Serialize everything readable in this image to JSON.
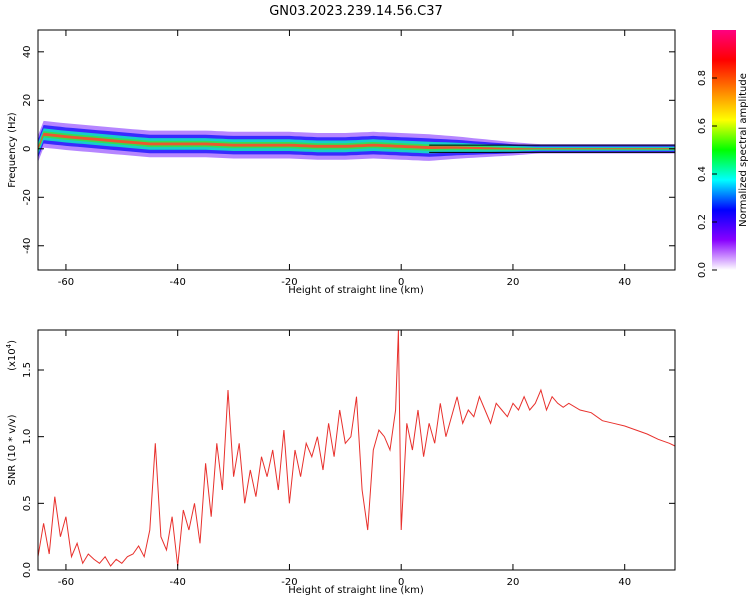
{
  "title": "GN03.2023.239.14.56.C37",
  "colors": {
    "trace": "#e8302c",
    "axis": "#000000"
  },
  "chart_data": [
    {
      "type": "heatmap",
      "xlabel": "Height of straight line (km)",
      "ylabel": "Frequency (Hz)",
      "xlim": [
        -65,
        49
      ],
      "ylim": [
        -50,
        49
      ],
      "x_ticks": [
        "-60",
        "-40",
        "-20",
        "0",
        "20",
        "40"
      ],
      "y_ticks": [
        "40",
        "20",
        "0",
        "-20",
        "-40"
      ],
      "colorbar": {
        "label": "Normalized spectral amplitude",
        "range": [
          0,
          1
        ],
        "ticks": [
          "0.0",
          "0.2",
          "0.4",
          "0.6",
          "0.8"
        ],
        "colors": [
          "#ffffff",
          "#8800ff",
          "#0000ff",
          "#00ffff",
          "#00ff00",
          "#ffff00",
          "#ff8000",
          "#ff0000",
          "#ff0080"
        ]
      },
      "band_center_hz": [
        [
          -64,
          6
        ],
        [
          -60,
          5
        ],
        [
          -55,
          4
        ],
        [
          -50,
          3
        ],
        [
          -45,
          2
        ],
        [
          -40,
          2
        ],
        [
          -35,
          2
        ],
        [
          -30,
          1.5
        ],
        [
          -25,
          1.5
        ],
        [
          -20,
          1.5
        ],
        [
          -15,
          1
        ],
        [
          -10,
          1
        ],
        [
          -5,
          1.5
        ],
        [
          0,
          1
        ],
        [
          5,
          0.5
        ],
        [
          10,
          0.5
        ],
        [
          20,
          0
        ],
        [
          30,
          0
        ],
        [
          40,
          0
        ],
        [
          49,
          0
        ]
      ]
    },
    {
      "type": "line",
      "xlabel": "Height of straight line (km)",
      "ylabel": "SNR (10 * v/v)",
      "multiplier": "(x10",
      "multiplier_exp": "4",
      "multiplier_close": ")",
      "xlim": [
        -65,
        49
      ],
      "ylim": [
        0,
        1.8
      ],
      "x_ticks": [
        "-60",
        "-40",
        "-20",
        "0",
        "20",
        "40"
      ],
      "y_ticks": [
        "0.0",
        "0.5",
        "1.0",
        "1.5"
      ],
      "series": [
        {
          "x": [
            -65,
            -64,
            -63,
            -62,
            -61,
            -60,
            -59,
            -58,
            -57,
            -56,
            -55,
            -54,
            -53,
            -52,
            -51,
            -50,
            -49,
            -48,
            -47,
            -46,
            -45,
            -44,
            -43,
            -42,
            -41,
            -40,
            -39,
            -38,
            -37,
            -36,
            -35,
            -34,
            -33,
            -32,
            -31,
            -30,
            -29,
            -28,
            -27,
            -26,
            -25,
            -24,
            -23,
            -22,
            -21,
            -20,
            -19,
            -18,
            -17,
            -16,
            -15,
            -14,
            -13,
            -12,
            -11,
            -10,
            -9,
            -8,
            -7,
            -6,
            -5,
            -4,
            -3,
            -2,
            -1,
            -0.5,
            0,
            1,
            2,
            3,
            4,
            5,
            6,
            7,
            8,
            9,
            10,
            11,
            12,
            13,
            14,
            15,
            16,
            17,
            18,
            19,
            20,
            21,
            22,
            23,
            24,
            25,
            26,
            27,
            28,
            29,
            30,
            32,
            34,
            36,
            38,
            40,
            42,
            44,
            46,
            48,
            49
          ],
          "y": [
            0.1,
            0.35,
            0.12,
            0.55,
            0.25,
            0.4,
            0.1,
            0.2,
            0.05,
            0.12,
            0.08,
            0.05,
            0.1,
            0.03,
            0.08,
            0.05,
            0.1,
            0.12,
            0.18,
            0.1,
            0.3,
            0.95,
            0.25,
            0.15,
            0.4,
            0.03,
            0.45,
            0.3,
            0.5,
            0.2,
            0.8,
            0.4,
            0.95,
            0.6,
            1.35,
            0.7,
            0.95,
            0.5,
            0.75,
            0.55,
            0.85,
            0.7,
            0.9,
            0.6,
            1.05,
            0.5,
            0.9,
            0.7,
            0.95,
            0.85,
            1.0,
            0.75,
            1.1,
            0.85,
            1.2,
            0.95,
            1.0,
            1.3,
            0.6,
            0.3,
            0.9,
            1.05,
            1.0,
            0.9,
            1.2,
            1.8,
            0.3,
            1.1,
            0.9,
            1.2,
            0.85,
            1.1,
            0.95,
            1.25,
            1.0,
            1.15,
            1.3,
            1.1,
            1.2,
            1.15,
            1.3,
            1.2,
            1.1,
            1.25,
            1.2,
            1.15,
            1.25,
            1.2,
            1.3,
            1.2,
            1.25,
            1.35,
            1.2,
            1.3,
            1.25,
            1.22,
            1.25,
            1.2,
            1.18,
            1.12,
            1.1,
            1.08,
            1.05,
            1.02,
            0.98,
            0.95,
            0.93
          ]
        }
      ]
    }
  ]
}
